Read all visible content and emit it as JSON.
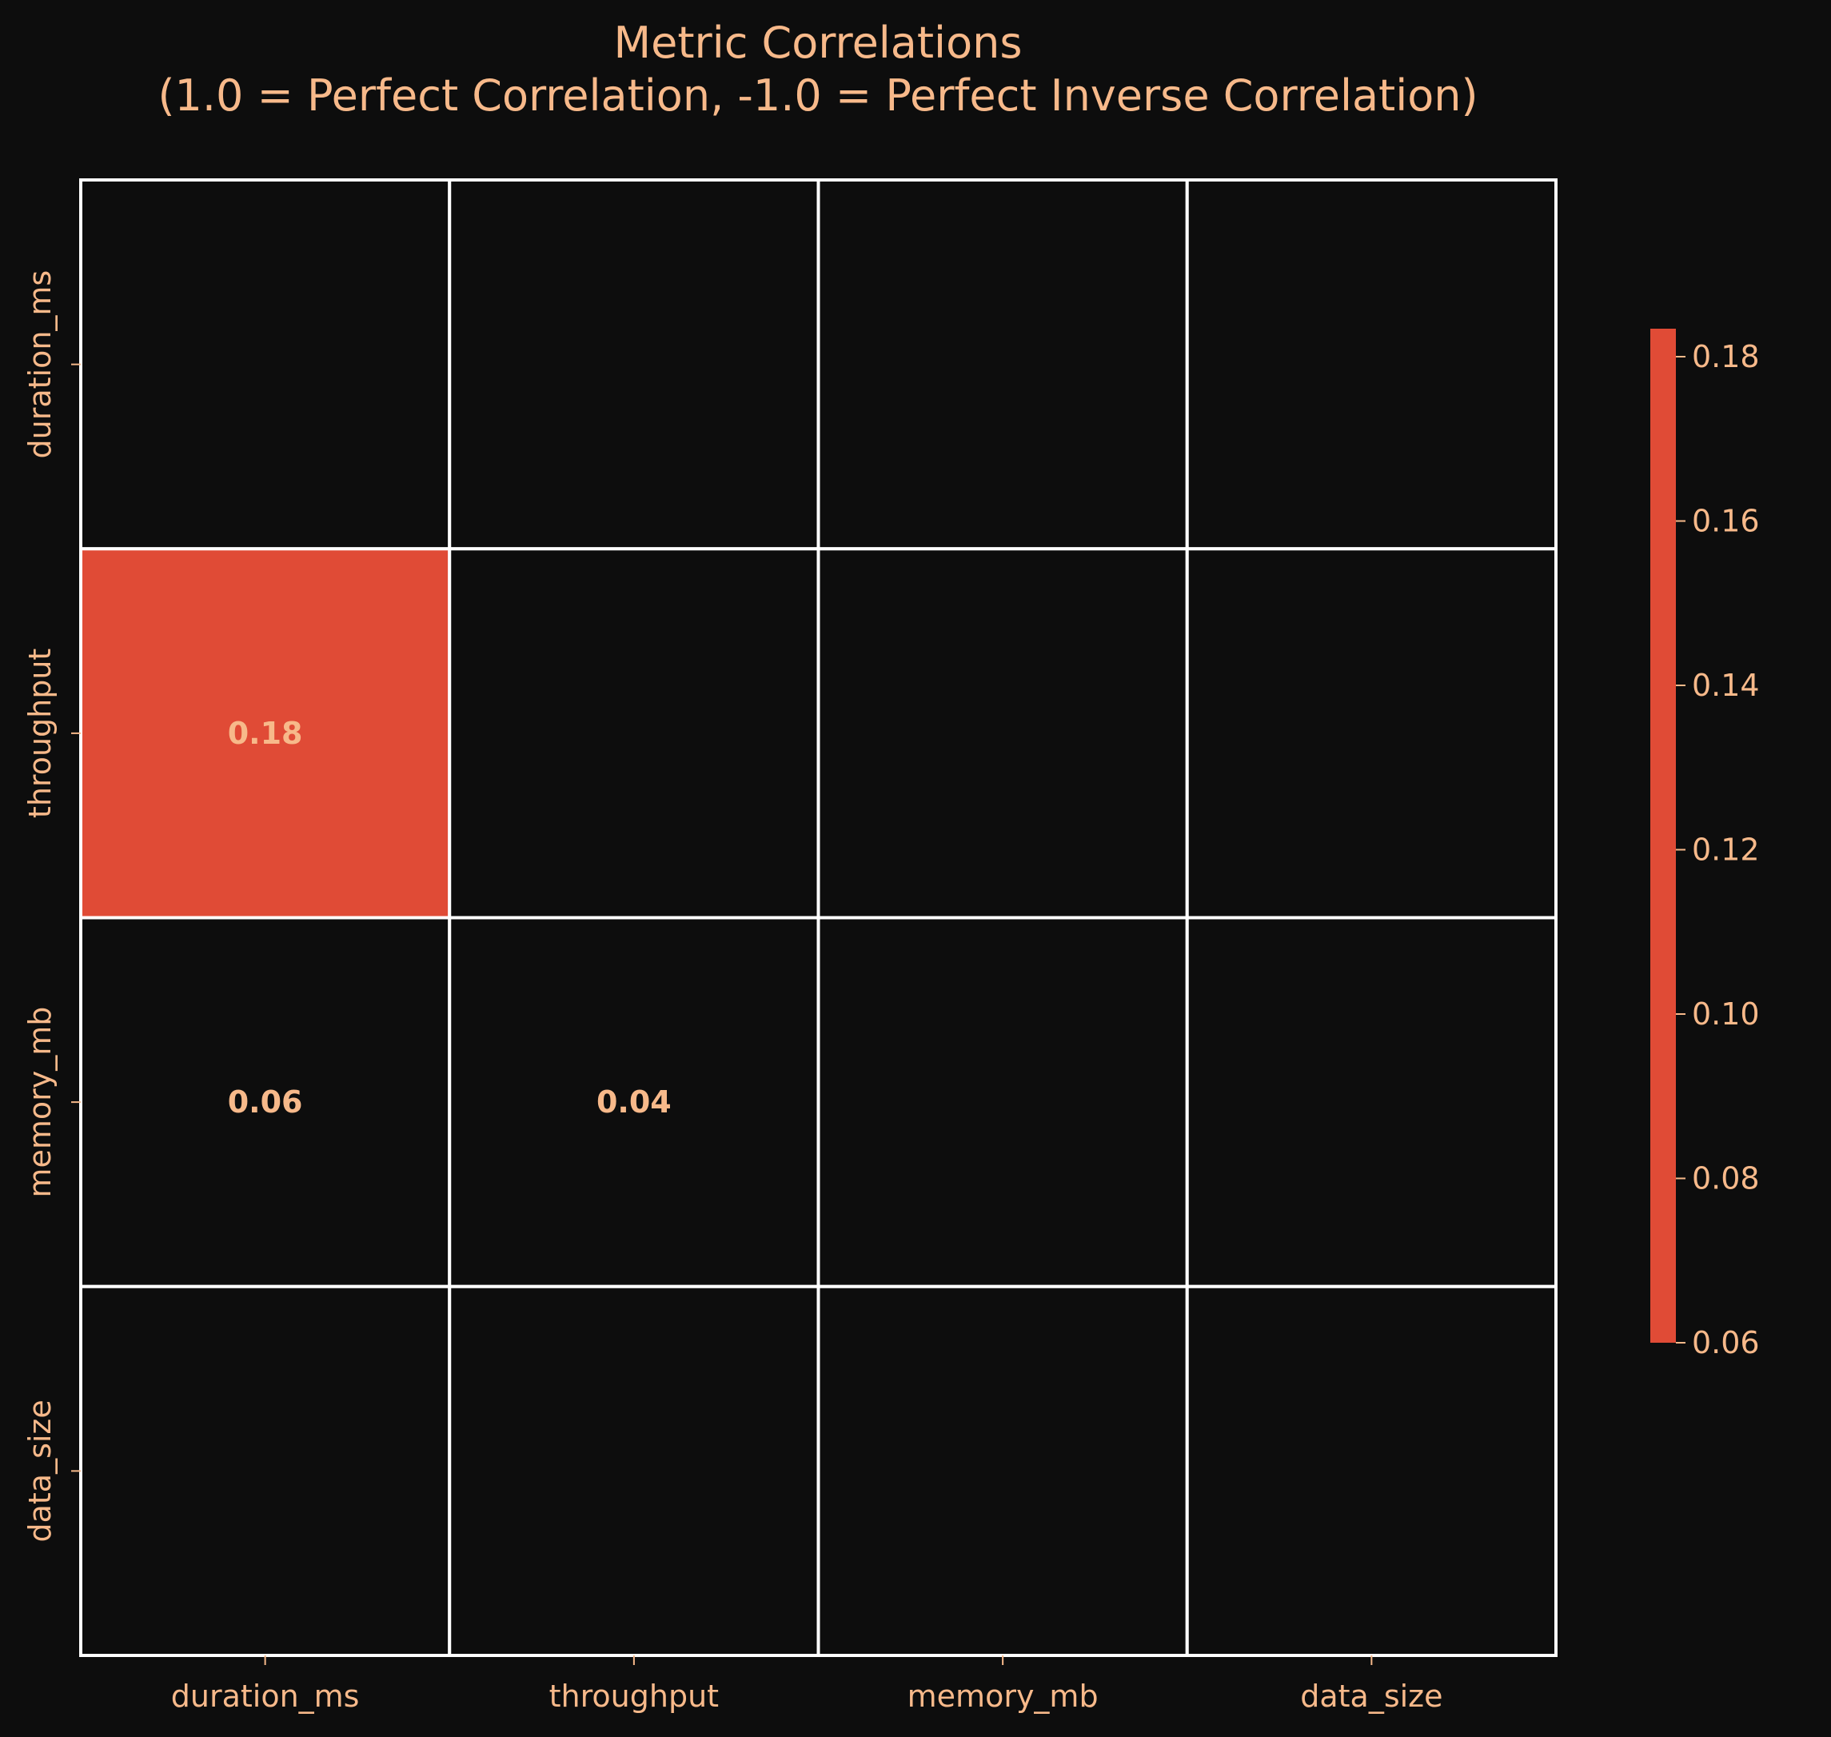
{
  "chart_data": {
    "type": "heatmap",
    "title": "Metric Correlations",
    "subtitle": "(1.0 = Perfect Correlation, -1.0 = Perfect Inverse Correlation)",
    "xlabel": "",
    "ylabel": "",
    "x_categories": [
      "duration_ms",
      "throughput",
      "memory_mb",
      "data_size"
    ],
    "y_categories": [
      "duration_ms",
      "throughput",
      "memory_mb",
      "data_size"
    ],
    "matrix": [
      [
        null,
        null,
        null,
        null
      ],
      [
        0.18,
        null,
        null,
        null
      ],
      [
        0.06,
        0.04,
        null,
        null
      ],
      [
        null,
        null,
        null,
        null
      ]
    ],
    "cell_labels": [
      [
        "",
        "",
        "",
        ""
      ],
      [
        "0.18",
        "",
        "",
        ""
      ],
      [
        "0.06",
        "0.04",
        "",
        ""
      ],
      [
        "",
        "",
        "",
        ""
      ]
    ],
    "colorbar": {
      "min": 0.06,
      "max": 0.18,
      "ticks": [
        "0.06",
        "0.08",
        "0.10",
        "0.12",
        "0.14",
        "0.16",
        "0.18"
      ],
      "tick_values": [
        0.06,
        0.08,
        0.1,
        0.12,
        0.14,
        0.16,
        0.18
      ]
    },
    "grid": false,
    "colors": {
      "background": "#0d0d0d",
      "text": "#f7b98a",
      "cell_fill": "#e04b36",
      "empty_cell": "#0d0d0d",
      "cell_border": "#ffffff"
    }
  }
}
